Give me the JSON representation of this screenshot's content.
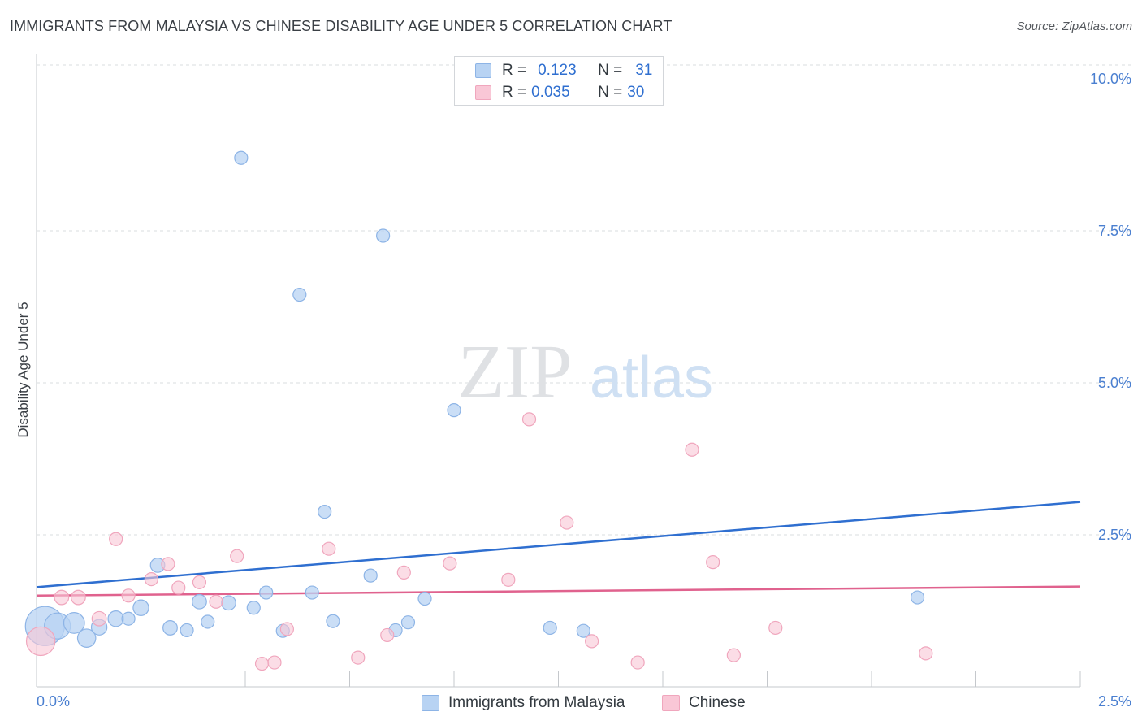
{
  "header": {
    "title": "IMMIGRANTS FROM MALAYSIA VS CHINESE DISABILITY AGE UNDER 5 CORRELATION CHART",
    "source": "Source: ZipAtlas.com"
  },
  "watermark": {
    "zip": "ZIP",
    "atlas": "atlas"
  },
  "legend": {
    "series": [
      {
        "r_label": "R =",
        "r_value": "0.123",
        "n_label": "N =",
        "n_value": "31"
      },
      {
        "r_label": "R =",
        "r_value": "0.035",
        "n_label": "N =",
        "n_value": "30"
      }
    ]
  },
  "bottom_legend": {
    "labels": [
      "Immigrants from Malaysia",
      "Chinese"
    ]
  },
  "colors": {
    "blue_fill": "#b8d3f3",
    "blue_stroke": "#8db4e6",
    "blue_line": "#2f6fd0",
    "pink_fill": "#f9c7d6",
    "pink_stroke": "#f0a6bd",
    "pink_line": "#e0628e",
    "tick_text": "#4a7fd0",
    "grid": "#d9dcdf"
  },
  "chart_data": {
    "type": "scatter",
    "title": "IMMIGRANTS FROM MALAYSIA VS CHINESE DISABILITY AGE UNDER 5 CORRELATION CHART",
    "xlabel": "",
    "ylabel": "Disability Age Under 5",
    "xlim": [
      0,
      2.5
    ],
    "ylim": [
      0,
      10.0
    ],
    "x_tick_labels": [
      "0.0%",
      "2.5%"
    ],
    "y_ticks": [
      2.5,
      5.0,
      7.5,
      10.0
    ],
    "y_tick_labels": [
      "2.5%",
      "5.0%",
      "7.5%",
      "10.0%"
    ],
    "grid": true,
    "legend_position": "top-center",
    "series": [
      {
        "name": "Immigrants from Malaysia",
        "R": 0.123,
        "N": 31,
        "points": [
          {
            "x": 0.02,
            "y": 1.0,
            "s": 3
          },
          {
            "x": 0.05,
            "y": 1.0,
            "s": 2
          },
          {
            "x": 0.09,
            "y": 1.05,
            "s": 1.6
          },
          {
            "x": 0.12,
            "y": 0.8,
            "s": 1.4
          },
          {
            "x": 0.15,
            "y": 0.98,
            "s": 1.2
          },
          {
            "x": 0.19,
            "y": 1.12,
            "s": 1.2
          },
          {
            "x": 0.22,
            "y": 1.12,
            "s": 1
          },
          {
            "x": 0.25,
            "y": 1.3,
            "s": 1.2
          },
          {
            "x": 0.29,
            "y": 2.0,
            "s": 1.1
          },
          {
            "x": 0.32,
            "y": 0.97,
            "s": 1.1
          },
          {
            "x": 0.36,
            "y": 0.93,
            "s": 1
          },
          {
            "x": 0.39,
            "y": 1.4,
            "s": 1.1
          },
          {
            "x": 0.41,
            "y": 1.07,
            "s": 1
          },
          {
            "x": 0.46,
            "y": 1.38,
            "s": 1.1
          },
          {
            "x": 0.52,
            "y": 1.3,
            "s": 1
          },
          {
            "x": 0.49,
            "y": 8.7,
            "s": 1
          },
          {
            "x": 0.55,
            "y": 1.55,
            "s": 1
          },
          {
            "x": 0.59,
            "y": 0.92,
            "s": 1
          },
          {
            "x": 0.63,
            "y": 6.45,
            "s": 1
          },
          {
            "x": 0.66,
            "y": 1.55,
            "s": 1
          },
          {
            "x": 0.69,
            "y": 2.88,
            "s": 1
          },
          {
            "x": 0.71,
            "y": 1.08,
            "s": 1
          },
          {
            "x": 0.8,
            "y": 1.83,
            "s": 1
          },
          {
            "x": 0.83,
            "y": 7.42,
            "s": 1
          },
          {
            "x": 0.86,
            "y": 0.93,
            "s": 1
          },
          {
            "x": 0.89,
            "y": 1.06,
            "s": 1
          },
          {
            "x": 0.93,
            "y": 1.45,
            "s": 1
          },
          {
            "x": 1.0,
            "y": 4.55,
            "s": 1
          },
          {
            "x": 1.23,
            "y": 0.97,
            "s": 1
          },
          {
            "x": 1.31,
            "y": 0.92,
            "s": 1
          },
          {
            "x": 2.11,
            "y": 1.47,
            "s": 1
          }
        ],
        "trend": [
          [
            0.0,
            1.64
          ],
          [
            2.5,
            3.04
          ]
        ]
      },
      {
        "name": "Chinese",
        "R": 0.035,
        "N": 30,
        "points": [
          {
            "x": 0.01,
            "y": 0.75,
            "s": 2.2
          },
          {
            "x": 0.06,
            "y": 1.47,
            "s": 1.1
          },
          {
            "x": 0.1,
            "y": 1.47,
            "s": 1.1
          },
          {
            "x": 0.15,
            "y": 1.12,
            "s": 1.1
          },
          {
            "x": 0.19,
            "y": 2.43,
            "s": 1
          },
          {
            "x": 0.22,
            "y": 1.5,
            "s": 1
          },
          {
            "x": 0.275,
            "y": 1.77,
            "s": 1
          },
          {
            "x": 0.315,
            "y": 2.02,
            "s": 1
          },
          {
            "x": 0.34,
            "y": 1.63,
            "s": 1
          },
          {
            "x": 0.39,
            "y": 1.72,
            "s": 1
          },
          {
            "x": 0.43,
            "y": 1.4,
            "s": 1
          },
          {
            "x": 0.48,
            "y": 2.15,
            "s": 1
          },
          {
            "x": 0.54,
            "y": 0.38,
            "s": 1
          },
          {
            "x": 0.57,
            "y": 0.4,
            "s": 1
          },
          {
            "x": 0.6,
            "y": 0.95,
            "s": 1
          },
          {
            "x": 0.7,
            "y": 2.27,
            "s": 1
          },
          {
            "x": 0.77,
            "y": 0.48,
            "s": 1
          },
          {
            "x": 0.84,
            "y": 0.85,
            "s": 1
          },
          {
            "x": 0.88,
            "y": 1.88,
            "s": 1
          },
          {
            "x": 0.99,
            "y": 2.03,
            "s": 1
          },
          {
            "x": 1.13,
            "y": 1.76,
            "s": 1
          },
          {
            "x": 1.18,
            "y": 4.4,
            "s": 1
          },
          {
            "x": 1.27,
            "y": 2.7,
            "s": 1
          },
          {
            "x": 1.33,
            "y": 0.75,
            "s": 1
          },
          {
            "x": 1.44,
            "y": 0.4,
            "s": 1
          },
          {
            "x": 1.57,
            "y": 3.9,
            "s": 1
          },
          {
            "x": 1.62,
            "y": 2.05,
            "s": 1
          },
          {
            "x": 1.67,
            "y": 0.52,
            "s": 1
          },
          {
            "x": 1.77,
            "y": 0.97,
            "s": 1
          },
          {
            "x": 2.13,
            "y": 0.55,
            "s": 1
          }
        ],
        "trend": [
          [
            0.0,
            1.5
          ],
          [
            2.5,
            1.65
          ]
        ]
      }
    ]
  }
}
